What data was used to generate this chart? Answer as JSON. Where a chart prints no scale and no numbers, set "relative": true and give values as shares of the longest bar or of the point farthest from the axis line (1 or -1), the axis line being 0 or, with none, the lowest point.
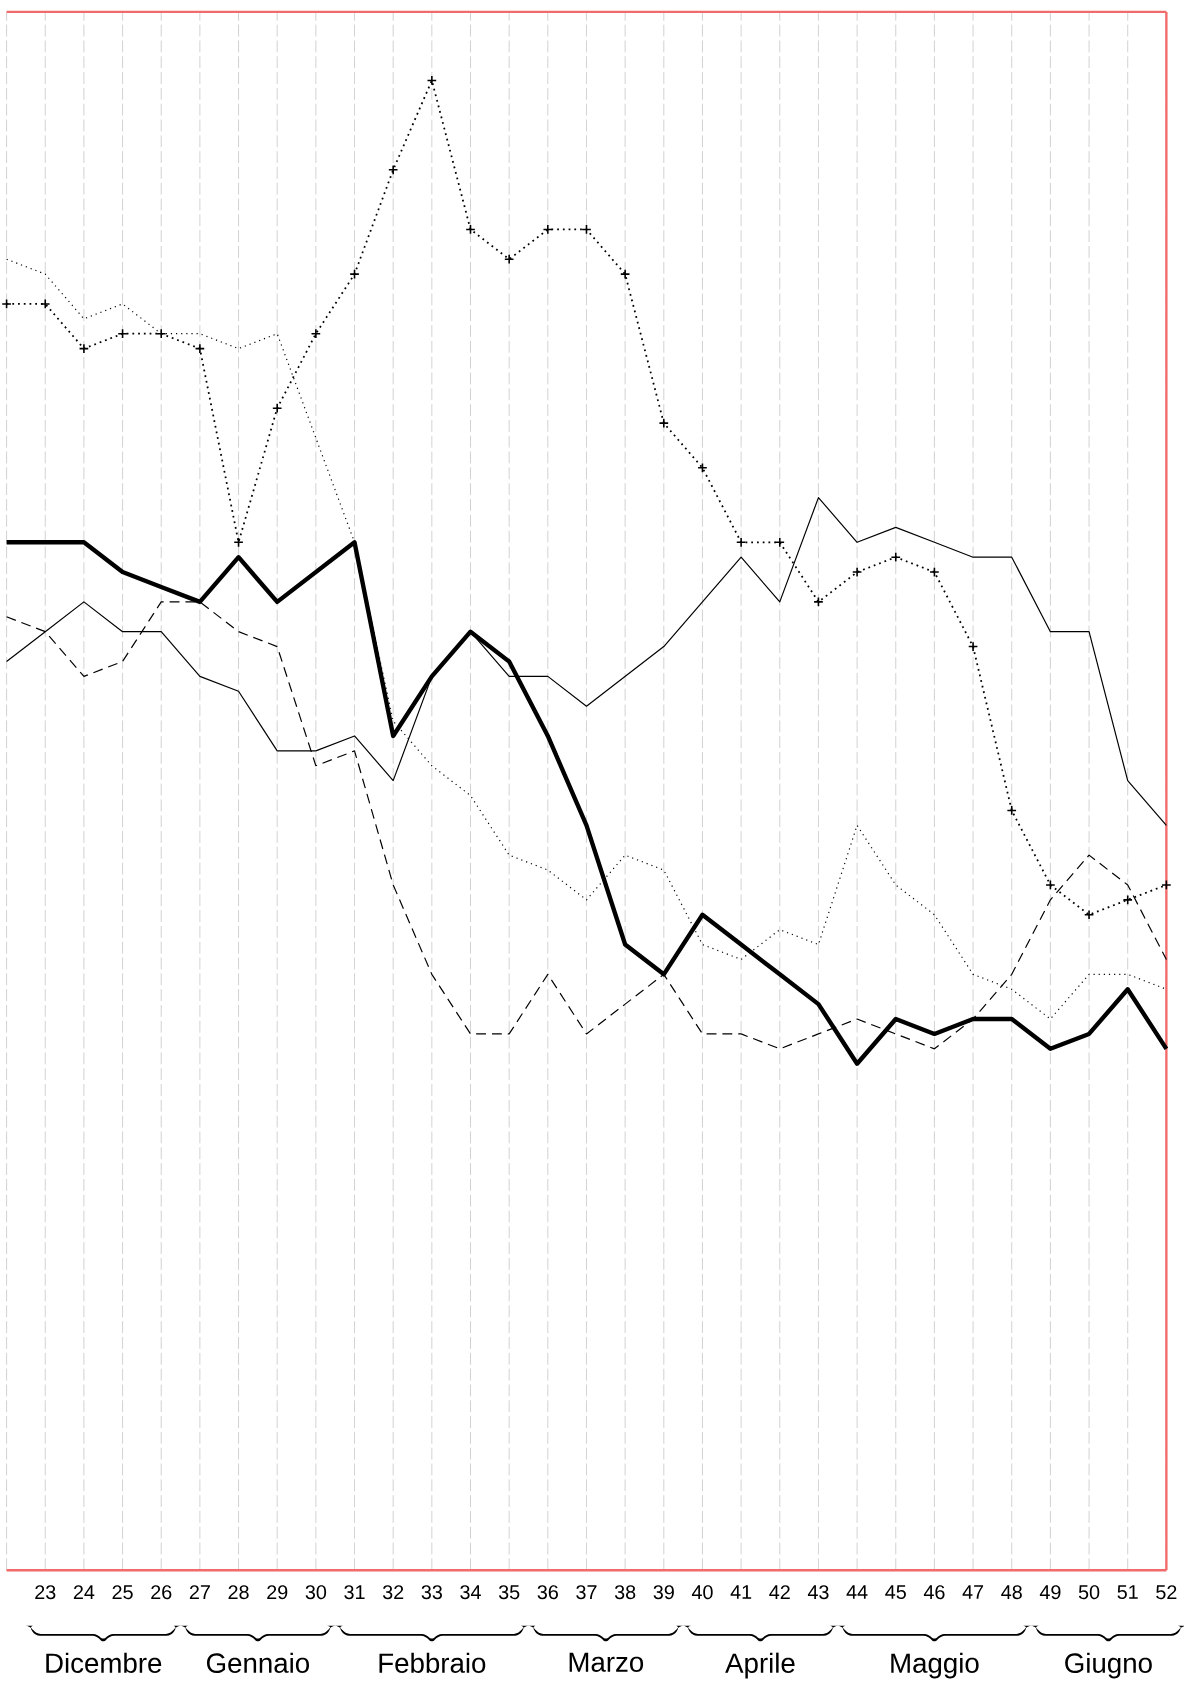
{
  "chart_data": {
    "type": "line",
    "relative": true,
    "tick_labels": "x",
    "grid": "x",
    "categories": [
      null,
      "23",
      "24",
      "25",
      "26",
      "27",
      "28",
      "29",
      "30",
      "31",
      "32",
      "33",
      "34",
      "35",
      "36",
      "37",
      "38",
      "39",
      "40",
      "41",
      "42",
      "43",
      "44",
      "45",
      "46",
      "47",
      "48",
      "49",
      "50",
      "51",
      "52"
    ],
    "annotations": [
      "Dicembre",
      "Gennaio",
      "Febbraio",
      "Marzo",
      "Aprile",
      "Maggio",
      "Giugno"
    ],
    "series": [
      {
        "color": "#000000",
        "line_style": "solid",
        "marker": "none",
        "values": [
          0.69,
          0.69,
          0.69,
          0.67,
          0.66,
          0.65,
          0.68,
          0.65,
          0.67,
          0.69,
          0.56,
          0.6,
          0.63,
          0.61,
          0.56,
          0.5,
          0.42,
          0.4,
          0.44,
          0.42,
          0.4,
          0.38,
          0.34,
          0.37,
          0.36,
          0.37,
          0.37,
          0.35,
          0.36,
          0.39,
          0.35
        ]
      },
      {
        "color": "#000000",
        "line_style": "dotted",
        "marker": "cross",
        "values": [
          0.85,
          0.85,
          0.82,
          0.83,
          0.83,
          0.82,
          0.69,
          0.78,
          0.83,
          0.87,
          0.94,
          1.0,
          0.9,
          0.88,
          0.9,
          0.9,
          0.87,
          0.77,
          0.74,
          0.69,
          0.69,
          0.65,
          0.67,
          0.68,
          0.67,
          0.62,
          0.51,
          0.46,
          0.44,
          0.45,
          0.46
        ]
      },
      {
        "color": "#000000",
        "line_style": "solid",
        "marker": "none",
        "values": [
          0.61,
          0.63,
          0.65,
          0.63,
          0.63,
          0.6,
          0.59,
          0.55,
          0.55,
          0.56,
          0.53,
          0.6,
          0.63,
          0.6,
          0.6,
          0.58,
          0.6,
          0.62,
          0.65,
          0.68,
          0.65,
          0.72,
          0.69,
          0.7,
          0.69,
          0.68,
          0.68,
          0.63,
          0.63,
          0.53,
          0.5
        ]
      },
      {
        "color": "#000000",
        "line_style": "dashed",
        "marker": "none",
        "values": [
          0.64,
          0.63,
          0.6,
          0.61,
          0.65,
          0.65,
          0.63,
          0.62,
          0.54,
          0.55,
          0.46,
          0.4,
          0.36,
          0.36,
          0.4,
          0.36,
          0.38,
          0.4,
          0.36,
          0.36,
          0.35,
          0.36,
          0.37,
          0.36,
          0.35,
          0.37,
          0.4,
          0.45,
          0.48,
          0.46,
          0.41
        ]
      },
      {
        "color": "#000000",
        "line_style": "dotted",
        "marker": "none",
        "values": [
          0.88,
          0.87,
          0.84,
          0.85,
          0.83,
          0.83,
          0.82,
          0.83,
          0.76,
          0.69,
          0.57,
          0.54,
          0.52,
          0.48,
          0.47,
          0.45,
          0.48,
          0.47,
          0.42,
          0.41,
          0.43,
          0.42,
          0.5,
          0.46,
          0.44,
          0.4,
          0.39,
          0.37,
          0.4,
          0.4,
          0.39
        ]
      }
    ]
  }
}
